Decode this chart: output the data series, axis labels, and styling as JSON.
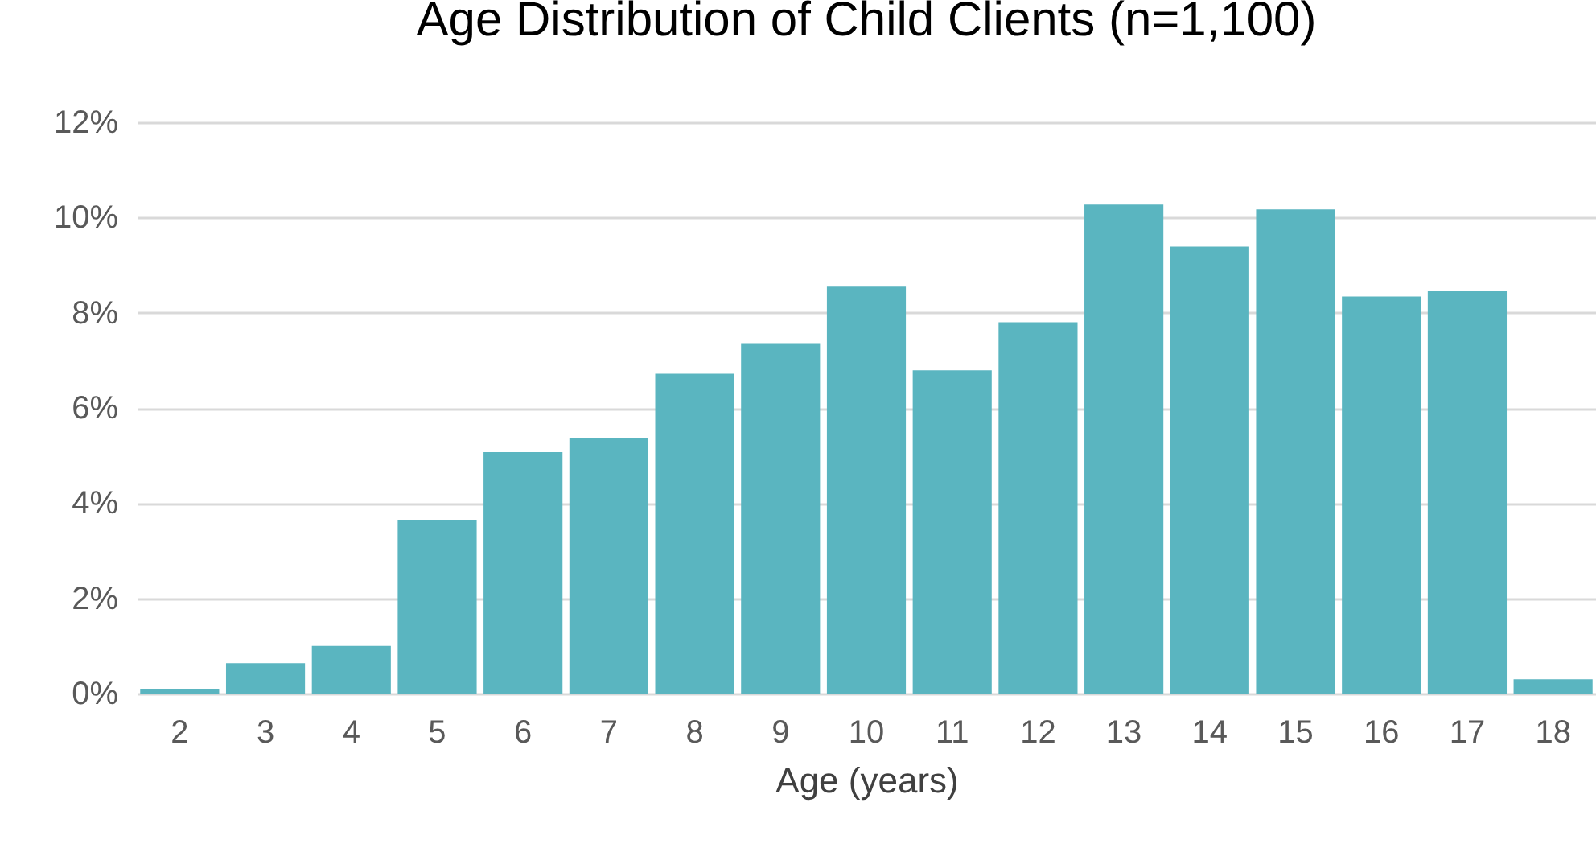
{
  "chart_data": {
    "type": "bar",
    "title": "Age Distribution of Child Clients (n=1,100)",
    "xlabel": "Age (years)",
    "categories": [
      "2",
      "3",
      "4",
      "5",
      "6",
      "7",
      "8",
      "9",
      "10",
      "11",
      "12",
      "13",
      "14",
      "15",
      "16",
      "17",
      "18"
    ],
    "values": [
      0.1,
      0.64,
      1.0,
      3.65,
      5.07,
      5.37,
      6.72,
      7.36,
      8.55,
      6.79,
      7.8,
      10.27,
      9.39,
      10.17,
      8.34,
      8.45,
      0.3
    ],
    "color": "#5ab5c0",
    "ylim": [
      0,
      12
    ],
    "yticks": [
      {
        "value": 0,
        "label": "0%"
      },
      {
        "value": 2,
        "label": "2%"
      },
      {
        "value": 4,
        "label": "4%"
      },
      {
        "value": 6,
        "label": "6%"
      },
      {
        "value": 8,
        "label": "8%"
      },
      {
        "value": 10,
        "label": "10%"
      },
      {
        "value": 12,
        "label": "12%"
      }
    ],
    "grid": "y"
  }
}
